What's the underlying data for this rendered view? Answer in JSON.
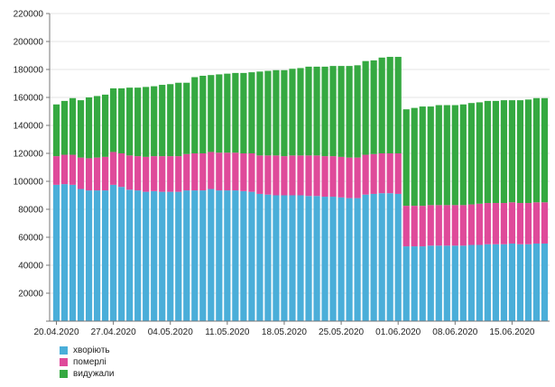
{
  "colors": {
    "sick": "#4aaed9",
    "deaths": "#df4a9a",
    "recovered": "#35a941",
    "grid": "#e4e4e4",
    "axis": "#777777",
    "text": "#222222"
  },
  "legend": [
    {
      "key": "sick",
      "label": "хворіють"
    },
    {
      "key": "deaths",
      "label": "померлі"
    },
    {
      "key": "recovered",
      "label": "видужали"
    }
  ],
  "chart_data": {
    "type": "bar",
    "stacked": true,
    "ylim": [
      0,
      220000
    ],
    "yticks": [
      20000,
      40000,
      60000,
      80000,
      100000,
      120000,
      140000,
      160000,
      180000,
      200000,
      220000
    ],
    "grid": "horizontal",
    "legend_position": "bottom-left",
    "x_tick_labels": [
      {
        "index": 0,
        "label": "20.04.2020"
      },
      {
        "index": 7,
        "label": "27.04.2020"
      },
      {
        "index": 14,
        "label": "04.05.2020"
      },
      {
        "index": 21,
        "label": "11.05.2020"
      },
      {
        "index": 28,
        "label": "18.05.2020"
      },
      {
        "index": 35,
        "label": "25.05.2020"
      },
      {
        "index": 42,
        "label": "01.06.2020"
      },
      {
        "index": 49,
        "label": "08.06.2020"
      },
      {
        "index": 56,
        "label": "15.06.2020"
      }
    ],
    "categories": [
      "20.04.2020",
      "21.04.2020",
      "22.04.2020",
      "23.04.2020",
      "24.04.2020",
      "25.04.2020",
      "26.04.2020",
      "27.04.2020",
      "28.04.2020",
      "29.04.2020",
      "30.04.2020",
      "01.05.2020",
      "02.05.2020",
      "03.05.2020",
      "04.05.2020",
      "05.05.2020",
      "06.05.2020",
      "07.05.2020",
      "08.05.2020",
      "09.05.2020",
      "10.05.2020",
      "11.05.2020",
      "12.05.2020",
      "13.05.2020",
      "14.05.2020",
      "15.05.2020",
      "16.05.2020",
      "17.05.2020",
      "18.05.2020",
      "19.05.2020",
      "20.05.2020",
      "21.05.2020",
      "22.05.2020",
      "23.05.2020",
      "24.05.2020",
      "25.05.2020",
      "26.05.2020",
      "27.05.2020",
      "28.05.2020",
      "29.05.2020",
      "30.05.2020",
      "31.05.2020",
      "01.06.2020",
      "02.06.2020",
      "03.06.2020",
      "04.06.2020",
      "05.06.2020",
      "06.06.2020",
      "07.06.2020",
      "08.06.2020",
      "09.06.2020",
      "10.06.2020",
      "11.06.2020",
      "12.06.2020",
      "13.06.2020",
      "14.06.2020",
      "15.06.2020",
      "16.06.2020",
      "17.06.2020",
      "18.06.2020",
      "19.06.2020"
    ],
    "series": [
      {
        "name": "хворіють",
        "key": "sick",
        "values": [
          97500,
          98000,
          97500,
          94500,
          93500,
          93500,
          93500,
          97500,
          96000,
          94000,
          93500,
          92500,
          93000,
          92500,
          92500,
          92500,
          93500,
          93500,
          93500,
          94500,
          93500,
          93500,
          93500,
          93000,
          92500,
          91000,
          90500,
          90000,
          90000,
          90000,
          90000,
          89500,
          89500,
          89000,
          89000,
          88500,
          88000,
          88000,
          90500,
          91000,
          91500,
          91500,
          91000,
          53500,
          53500,
          53500,
          54000,
          54000,
          54000,
          54000,
          54000,
          54500,
          54500,
          55000,
          55000,
          55000,
          55500,
          55000,
          55000,
          55500,
          55500
        ]
      },
      {
        "name": "померлі",
        "key": "deaths",
        "values": [
          20500,
          21000,
          21500,
          22500,
          23000,
          23500,
          24000,
          23500,
          24000,
          24500,
          24500,
          25000,
          25000,
          25500,
          25500,
          25500,
          26000,
          26500,
          26500,
          26500,
          27000,
          27000,
          27000,
          27000,
          27500,
          27500,
          28000,
          28500,
          28000,
          28500,
          28500,
          29000,
          29000,
          29000,
          29000,
          29000,
          29000,
          29000,
          28500,
          28500,
          28500,
          28500,
          29000,
          29000,
          29000,
          29000,
          29000,
          29000,
          29000,
          29000,
          29000,
          29000,
          29500,
          29500,
          29500,
          29500,
          29500,
          29500,
          29500,
          29500,
          29500
        ]
      },
      {
        "name": "видужали",
        "key": "recovered",
        "values": [
          37000,
          38500,
          40500,
          41000,
          43500,
          44000,
          44500,
          45500,
          46500,
          48500,
          49000,
          50000,
          50000,
          51000,
          51500,
          52500,
          51000,
          54500,
          55500,
          55000,
          56000,
          56500,
          57000,
          57500,
          58000,
          60000,
          60500,
          61000,
          61500,
          62000,
          62500,
          63500,
          63500,
          64000,
          64500,
          65000,
          65500,
          66000,
          67000,
          67000,
          68500,
          69000,
          69000,
          69000,
          70000,
          71000,
          70500,
          71500,
          71500,
          71500,
          72000,
          72500,
          72500,
          73000,
          73000,
          73500,
          73000,
          73500,
          74000,
          74500,
          74500
        ]
      }
    ]
  }
}
